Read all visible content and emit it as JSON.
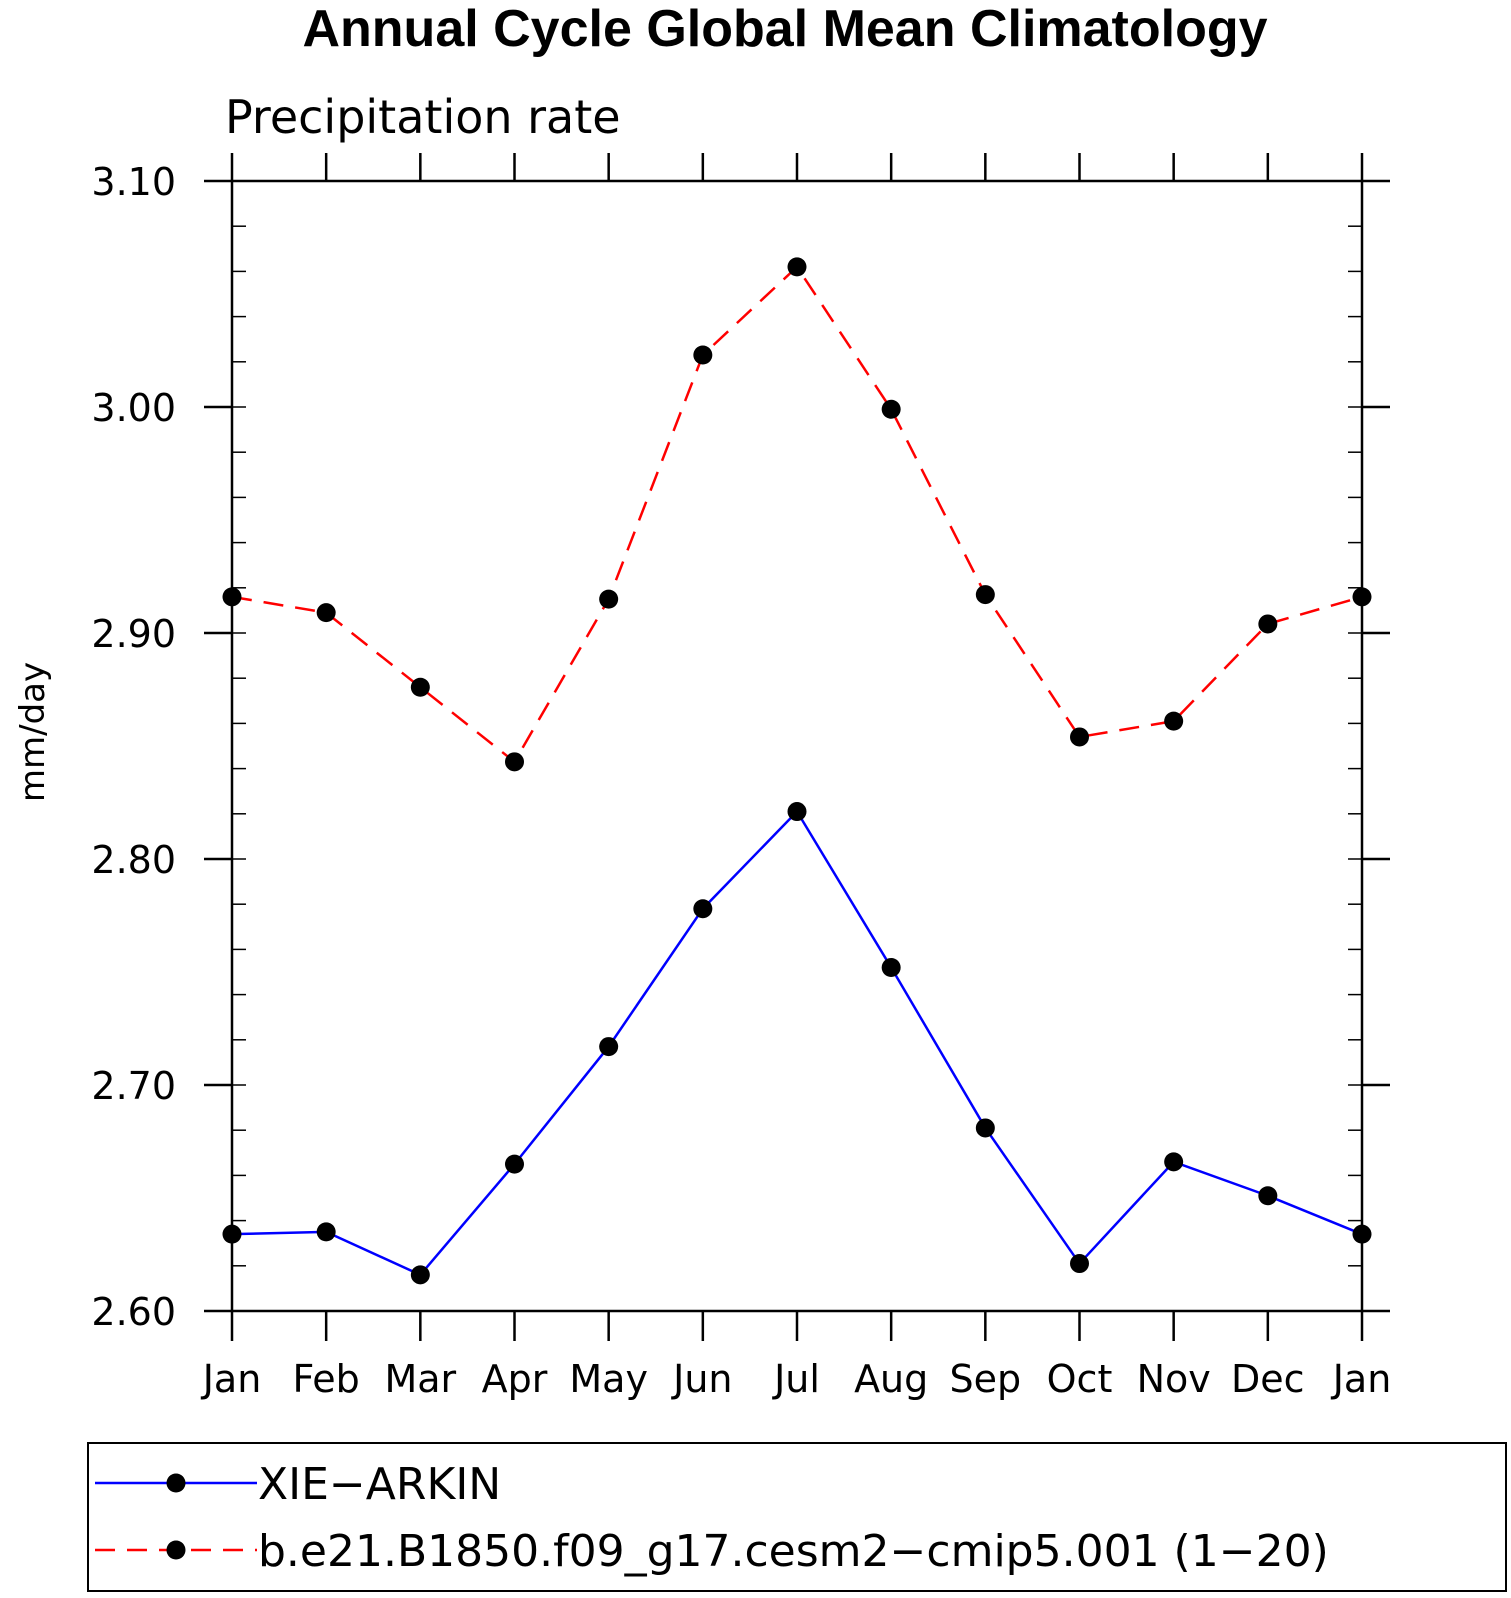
{
  "chart_data": {
    "type": "line",
    "title": "Annual Cycle Global Mean Climatology",
    "subtitle": "Precipitation rate",
    "ylabel": "mm/day",
    "xlabel": "",
    "categories": [
      "Jan",
      "Feb",
      "Mar",
      "Apr",
      "May",
      "Jun",
      "Jul",
      "Aug",
      "Sep",
      "Oct",
      "Nov",
      "Dec",
      "Jan"
    ],
    "ylim": [
      2.6,
      3.1
    ],
    "yticks": [
      "2.60",
      "2.70",
      "2.80",
      "2.90",
      "3.00",
      "3.10"
    ],
    "series": [
      {
        "name": "XIE−ARKIN",
        "color": "#0000ff",
        "dash": "solid",
        "marker": "filled-circle",
        "values": [
          2.634,
          2.635,
          2.616,
          2.665,
          2.717,
          2.778,
          2.821,
          2.752,
          2.681,
          2.621,
          2.666,
          2.651,
          2.634
        ]
      },
      {
        "name": "b.e21.B1850.f09_g17.cesm2−cmip5.001 (1−20)",
        "color": "#ff0000",
        "dash": "dashed",
        "marker": "filled-circle",
        "values": [
          2.916,
          2.909,
          2.876,
          2.843,
          2.915,
          3.023,
          3.062,
          2.999,
          2.917,
          2.854,
          2.861,
          2.904,
          2.916
        ]
      }
    ],
    "legend_position": "bottom",
    "grid": false
  }
}
